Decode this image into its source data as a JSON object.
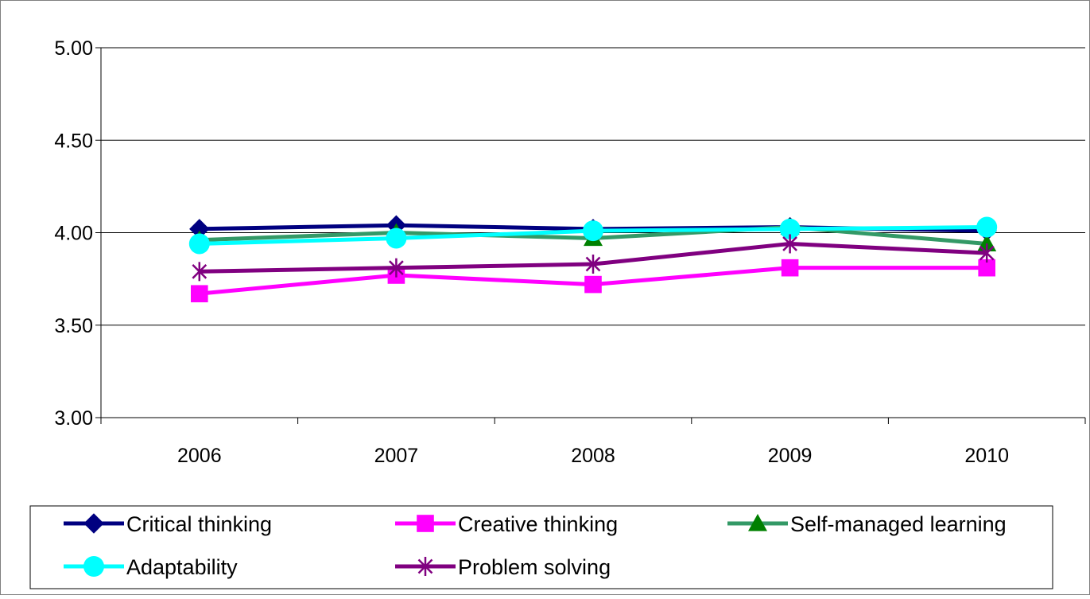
{
  "chart_data": {
    "type": "line",
    "categories": [
      "2006",
      "2007",
      "2008",
      "2009",
      "2010"
    ],
    "ylim": [
      3.0,
      5.0
    ],
    "yticks": [
      "3.00",
      "3.50",
      "4.00",
      "4.50",
      "5.00"
    ],
    "ytick_values": [
      3.0,
      3.5,
      4.0,
      4.5,
      5.0
    ],
    "grid": true,
    "legend_position": "bottom",
    "series": [
      {
        "name": "Critical thinking",
        "values": [
          4.02,
          4.04,
          4.02,
          4.03,
          4.01
        ],
        "color": "#000080",
        "marker": "diamond"
      },
      {
        "name": "Creative thinking",
        "values": [
          3.67,
          3.77,
          3.72,
          3.81,
          3.81
        ],
        "color": "#FF00FF",
        "marker": "square"
      },
      {
        "name": "Self-managed learning",
        "values": [
          3.96,
          4.0,
          3.97,
          4.03,
          3.94
        ],
        "color": "#339966",
        "marker_color": "#008000",
        "marker": "triangle"
      },
      {
        "name": "Adaptability",
        "values": [
          3.94,
          3.97,
          4.01,
          4.02,
          4.03
        ],
        "color": "#00FFFF",
        "marker": "circle"
      },
      {
        "name": "Problem solving",
        "values": [
          3.79,
          3.81,
          3.83,
          3.94,
          3.89
        ],
        "color": "#800080",
        "marker": "star"
      }
    ]
  }
}
